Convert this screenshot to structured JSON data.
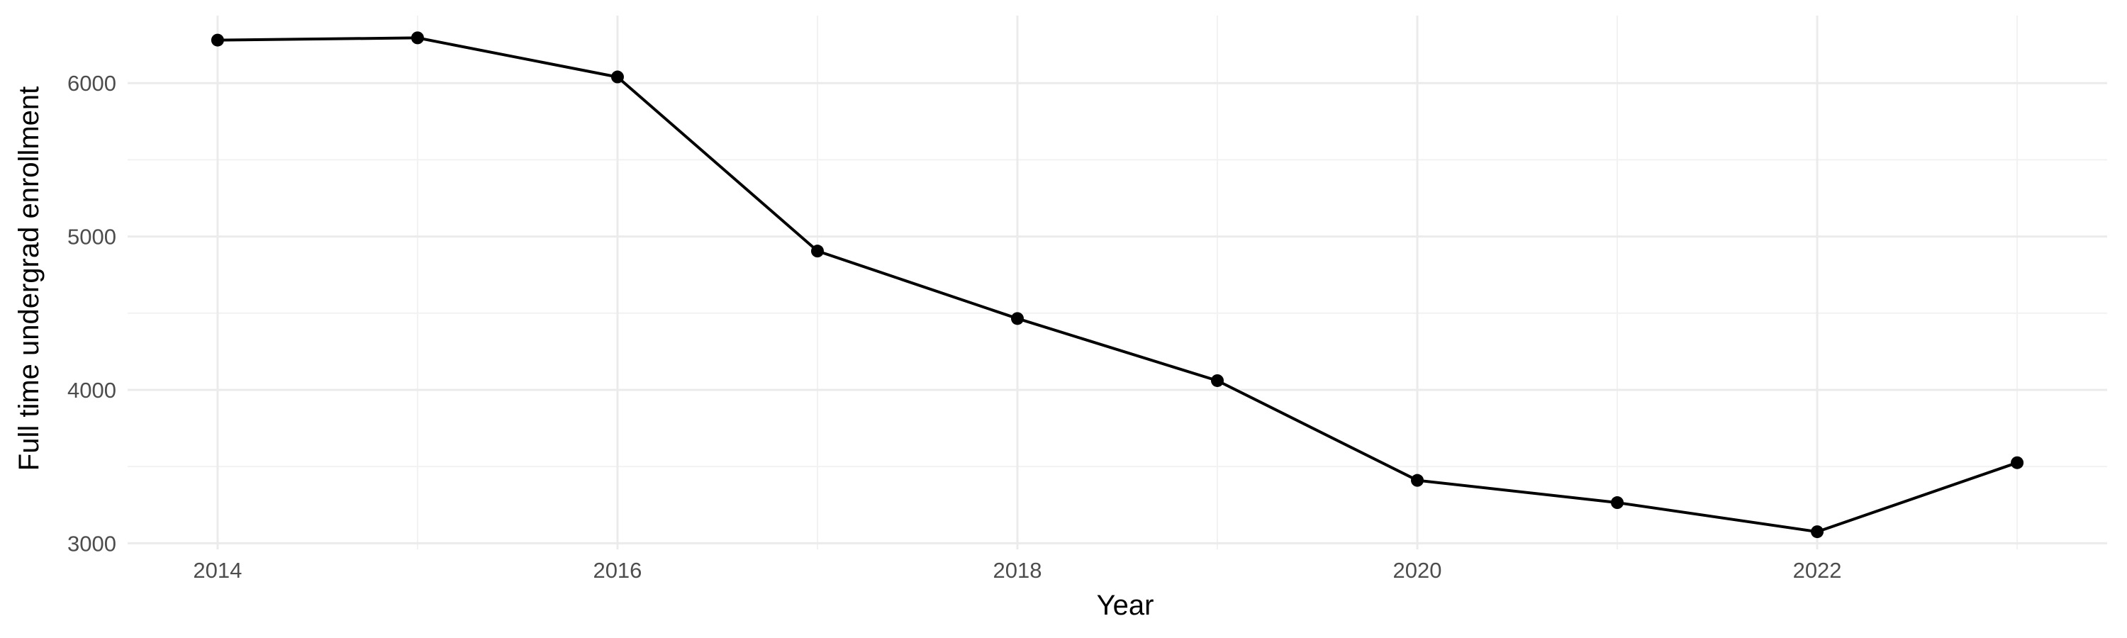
{
  "chart_data": {
    "type": "line",
    "title": "",
    "xlabel": "Year",
    "ylabel": "Full time undergrad enrollment",
    "x": [
      2014,
      2015,
      2016,
      2017,
      2018,
      2019,
      2020,
      2021,
      2022,
      2023
    ],
    "series": [
      {
        "values": [
          6280,
          6295,
          6040,
          4905,
          4465,
          4060,
          3410,
          3265,
          3075,
          3525
        ]
      }
    ],
    "xlim": [
      2013.55,
      2023.45
    ],
    "ylim": [
      2960,
      6440
    ],
    "x_ticks": [
      2014,
      2016,
      2018,
      2020,
      2022
    ],
    "x_tick_labels": [
      "2014",
      "2016",
      "2018",
      "2020",
      "2022"
    ],
    "y_ticks": [
      3000,
      4000,
      5000,
      6000
    ],
    "y_tick_labels": [
      "3000",
      "4000",
      "5000",
      "6000"
    ],
    "grid": true,
    "legend": "none",
    "colors": {
      "line": "#000000",
      "point": "#000000",
      "grid": "#ebebeb",
      "background": "#ffffff"
    }
  }
}
